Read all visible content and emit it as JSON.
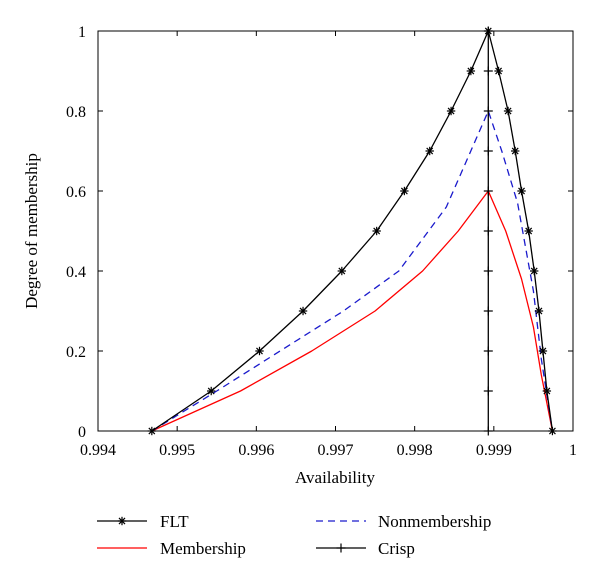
{
  "chart_data": {
    "type": "line",
    "xlabel": "Availability",
    "ylabel": "Degree of membership",
    "xlim": [
      0.994,
      1
    ],
    "ylim": [
      0,
      1
    ],
    "x_ticks": [
      "0.994",
      "0.995",
      "0.996",
      "0.997",
      "0.998",
      "0.999",
      "1"
    ],
    "y_ticks": [
      "0",
      "0.2",
      "0.4",
      "0.6",
      "0.8",
      "1"
    ],
    "grid": false,
    "legend_position": "bottom",
    "series": [
      {
        "name": "FLT",
        "color": "#000000",
        "style": "solid",
        "marker": "asterisk",
        "x": [
          0.99468,
          0.99543,
          0.99604,
          0.99659,
          0.99708,
          0.99752,
          0.99787,
          0.99819,
          0.99846,
          0.99871,
          0.99893,
          0.99906,
          0.99918,
          0.99927,
          0.99935,
          0.99944,
          0.99951,
          0.99957,
          0.99962,
          0.99967,
          0.99974
        ],
        "y": [
          0,
          0.1,
          0.2,
          0.3,
          0.4,
          0.5,
          0.6,
          0.7,
          0.8,
          0.9,
          1,
          0.9,
          0.8,
          0.7,
          0.6,
          0.5,
          0.4,
          0.3,
          0.2,
          0.1,
          0
        ]
      },
      {
        "name": "Nonmembership",
        "color": "#1a1acc",
        "style": "dashed",
        "marker": "none",
        "x": [
          0.99468,
          0.9955,
          0.9963,
          0.9971,
          0.9978,
          0.9984,
          0.99893,
          0.9991,
          0.9993,
          0.9995,
          0.9996,
          0.99974
        ],
        "y": [
          0,
          0.1,
          0.2,
          0.3,
          0.4,
          0.56,
          0.8,
          0.7,
          0.57,
          0.35,
          0.18,
          0
        ]
      },
      {
        "name": "Membership",
        "color": "#ff0000",
        "style": "solid",
        "marker": "none",
        "x": [
          0.99468,
          0.9958,
          0.9967,
          0.9975,
          0.9981,
          0.99855,
          0.99893,
          0.99915,
          0.99935,
          0.9995,
          0.9996,
          0.99974
        ],
        "y": [
          0,
          0.1,
          0.2,
          0.3,
          0.4,
          0.5,
          0.6,
          0.5,
          0.38,
          0.26,
          0.14,
          0
        ]
      },
      {
        "name": "Crisp",
        "color": "#000000",
        "style": "solid",
        "marker": "plus",
        "x": [
          0.99893,
          0.99893,
          0.99893,
          0.99893,
          0.99893,
          0.99893,
          0.99893,
          0.99893,
          0.99893,
          0.99893,
          0.99893
        ],
        "y": [
          0,
          0.1,
          0.2,
          0.3,
          0.4,
          0.5,
          0.6,
          0.7,
          0.8,
          0.9,
          1
        ]
      }
    ],
    "legend": [
      "FLT",
      "Nonmembership",
      "Membership",
      "Crisp"
    ]
  }
}
